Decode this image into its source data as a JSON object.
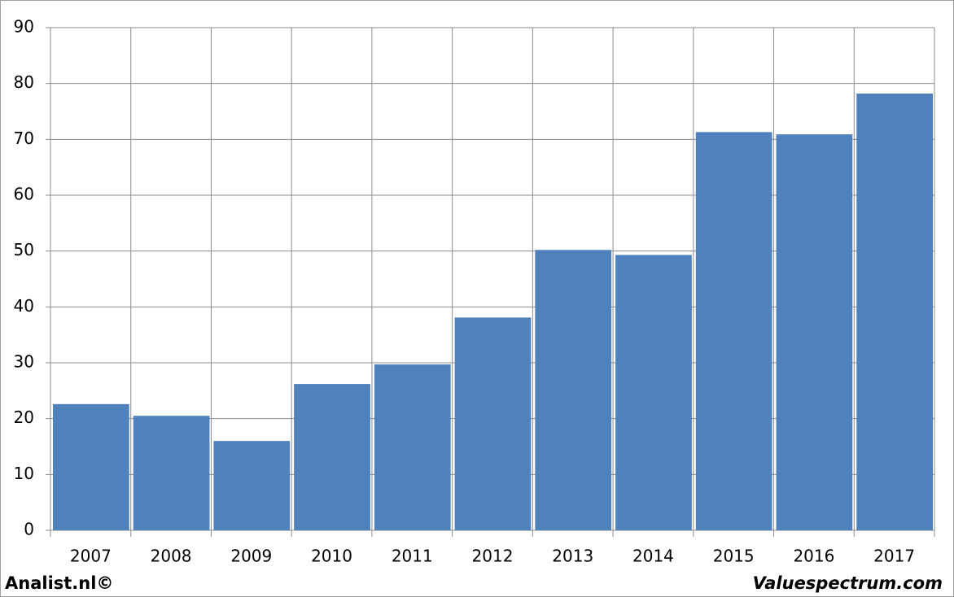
{
  "chart_data": {
    "type": "bar",
    "categories": [
      "2007",
      "2008",
      "2009",
      "2010",
      "2011",
      "2012",
      "2013",
      "2014",
      "2015",
      "2016",
      "2017"
    ],
    "values": [
      22.6,
      20.5,
      16.0,
      26.2,
      29.7,
      38.1,
      50.2,
      49.3,
      71.3,
      70.9,
      78.2
    ],
    "color": "#4f81bd",
    "ylim": [
      0,
      90
    ],
    "yticks": [
      0,
      10,
      20,
      30,
      40,
      50,
      60,
      70,
      80,
      90
    ],
    "grid": true
  },
  "footer": {
    "left": "Analist.nl©",
    "right": "Valuespectrum.com"
  }
}
